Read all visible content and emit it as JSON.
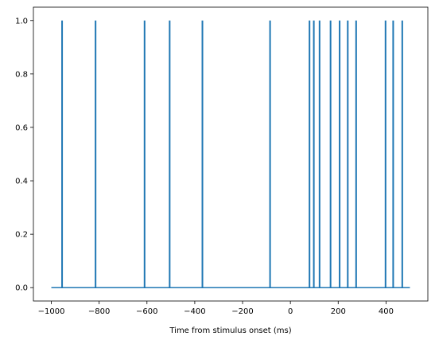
{
  "chart_data": {
    "type": "line",
    "title": "",
    "xlabel": "Time from stimulus onset (ms)",
    "ylabel": "",
    "xlim": [
      -1075,
      575
    ],
    "ylim": [
      -0.05,
      1.05
    ],
    "x_ticks": [
      -1000,
      -800,
      -600,
      -400,
      -200,
      0,
      200,
      400
    ],
    "x_tick_labels": [
      "−1000",
      "−800",
      "−600",
      "−400",
      "−200",
      "0",
      "200",
      "400"
    ],
    "y_ticks": [
      0.0,
      0.2,
      0.4,
      0.6,
      0.8,
      1.0
    ],
    "y_tick_labels": [
      "0.0",
      "0.2",
      "0.4",
      "0.6",
      "0.8",
      "1.0"
    ],
    "grid": false,
    "series": [
      {
        "color": "#1f77b4",
        "x_range": [
          -1000,
          500
        ],
        "baseline": 0,
        "spike_value": 1,
        "spike_times": [
          -955,
          -815,
          -610,
          -505,
          -368,
          -85,
          80,
          98,
          122,
          168,
          206,
          240,
          275,
          398,
          430,
          468
        ]
      }
    ]
  }
}
